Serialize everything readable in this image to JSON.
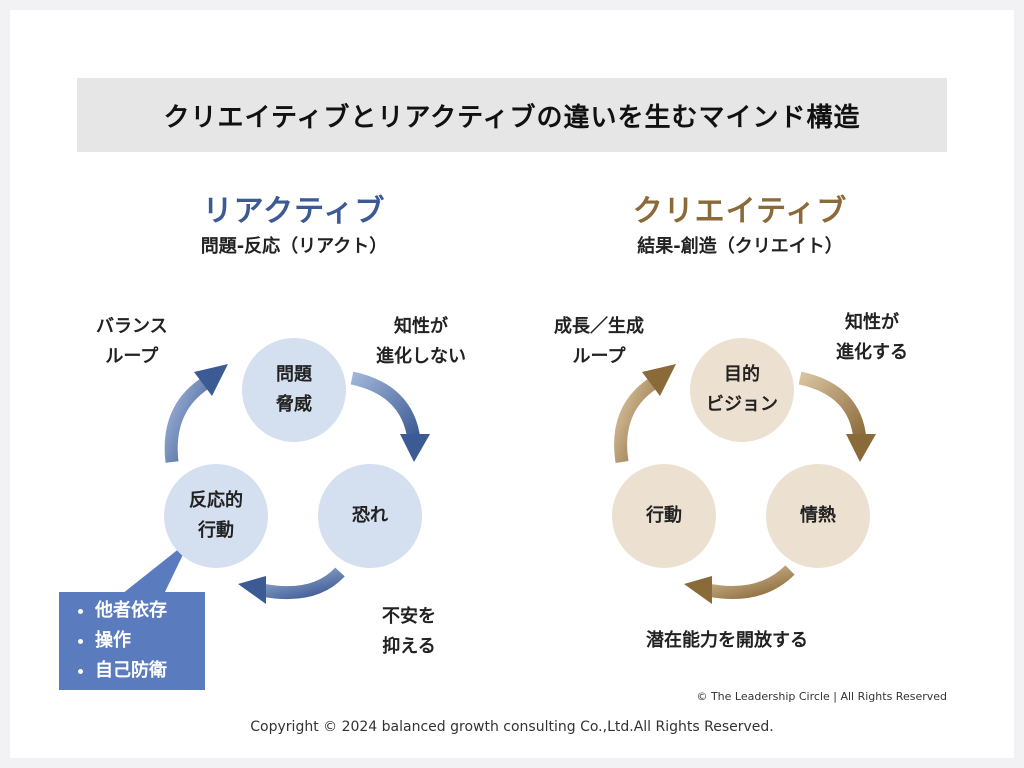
{
  "title": "クリエイティブとリアクティブの違いを生むマインド構造",
  "reactive": {
    "heading": "リアクティブ",
    "subheading": "問題-反応（リアクト）",
    "color": "#3c5a93",
    "nodes": [
      "問題\n脅威",
      "恐れ",
      "反応的\n行動"
    ],
    "labels": [
      "バランス\nループ",
      "知性が\n進化しない",
      "不安を\n抑える"
    ],
    "callout_items": [
      "他者依存",
      "操作",
      "自己防衛"
    ]
  },
  "creative": {
    "heading": "クリエイティブ",
    "subheading": "結果-創造（クリエイト）",
    "color": "#8b6a3a",
    "nodes": [
      "目的\nビジョン",
      "情熱",
      "行動"
    ],
    "labels": [
      "成長／生成\nループ",
      "知性が\n進化する",
      "潜在能力を開放する"
    ]
  },
  "credit": "© The Leadership Circle | All Rights Reserved",
  "copyright": "Copyright © 2024 balanced growth consulting Co.,Ltd.All Rights Reserved."
}
